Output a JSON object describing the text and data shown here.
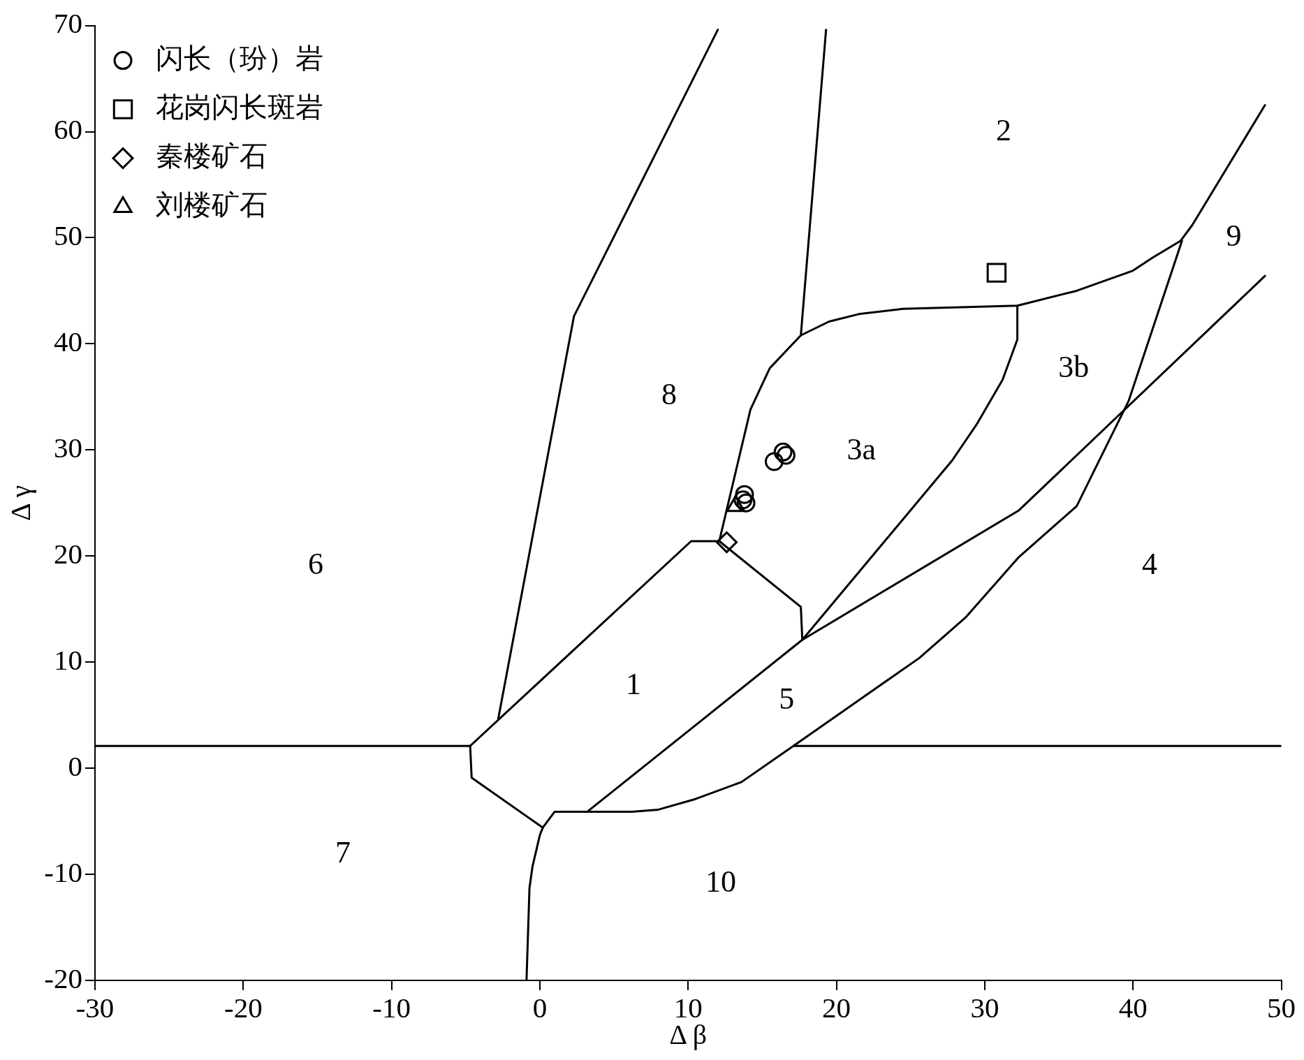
{
  "chart_data": {
    "type": "scatter",
    "xlabel": "Δ β",
    "ylabel": "Δ γ",
    "xlim": [
      -30,
      50
    ],
    "ylim": [
      -20,
      70
    ],
    "xticks": [
      -30,
      -20,
      -10,
      0,
      10,
      20,
      30,
      40,
      50
    ],
    "yticks": [
      -20,
      -10,
      0,
      10,
      20,
      30,
      40,
      50,
      60,
      70
    ],
    "legend": "top left",
    "annotations": [
      "1",
      "2",
      "3a",
      "3b",
      "4",
      "5",
      "6",
      "7",
      "8",
      "9",
      "10"
    ],
    "series": [
      {
        "type": "line",
        "color": "#000000",
        "x": [
          -30,
          -4.7
        ],
        "values": [
          2.1,
          2.1
        ]
      },
      {
        "type": "line",
        "color": "#000000",
        "x": [
          -4.7,
          -4.6,
          0.2,
          0.0,
          -0.5,
          -0.7,
          -0.9
        ],
        "values": [
          2.1,
          -0.9,
          -5.6,
          -6.3,
          -9.3,
          -11.3,
          -20
        ]
      },
      {
        "type": "line",
        "color": "#000000",
        "x": [
          0.2,
          1.0,
          3.2,
          6.2,
          8.0,
          10.5,
          13.6,
          17.1,
          25.6,
          28.7,
          32.3,
          36.2,
          38.0,
          39.7,
          43.3
        ],
        "values": [
          -5.6,
          -4.1,
          -4.1,
          -4.1,
          -3.9,
          -2.9,
          -1.3,
          2.1,
          10.4,
          14.2,
          19.9,
          24.7,
          29.8,
          34.6,
          49.7
        ]
      },
      {
        "type": "line",
        "color": "#000000",
        "x": [
          17.1,
          50
        ],
        "values": [
          2.1,
          2.1
        ]
      },
      {
        "type": "line",
        "color": "#000000",
        "x": [
          3.2,
          17.7,
          32.3,
          48.9
        ],
        "values": [
          -4.1,
          12.1,
          24.3,
          46.4
        ]
      },
      {
        "type": "line",
        "color": "#000000",
        "x": [
          -4.7,
          10.2,
          12.1,
          17.6,
          17.7
        ],
        "values": [
          2.1,
          21.4,
          21.4,
          15.2,
          12.1
        ]
      },
      {
        "type": "line",
        "color": "#000000",
        "x": [
          -2.8,
          2.3,
          12.0
        ],
        "values": [
          4.7,
          42.6,
          69.6
        ]
      },
      {
        "type": "line",
        "color": "#000000",
        "x": [
          17.6,
          19.3
        ],
        "values": [
          40.8,
          69.6
        ]
      },
      {
        "type": "line",
        "color": "#000000",
        "x": [
          12.1,
          14.2,
          15.5,
          17.6,
          19.5,
          21.5,
          24.5,
          32.2,
          36.2,
          40.0,
          41.3,
          43.2,
          44.0,
          48.9
        ],
        "values": [
          21.4,
          33.8,
          37.7,
          40.8,
          42.1,
          42.8,
          43.3,
          43.6,
          45.0,
          46.9,
          48.1,
          49.7,
          51.2,
          62.5
        ]
      },
      {
        "type": "line",
        "color": "#000000",
        "x": [
          32.2,
          32.2,
          31.2,
          29.5,
          27.8,
          17.7
        ],
        "values": [
          43.6,
          40.4,
          36.6,
          32.5,
          29.0,
          12.1
        ]
      },
      {
        "name": "闪长（玢）岩",
        "type": "scatter",
        "marker": "circle",
        "color": "#000000",
        "x": [
          16.4,
          16.6,
          15.8,
          13.8,
          13.7,
          13.9
        ],
        "values": [
          29.8,
          29.5,
          28.9,
          25.8,
          25.3,
          25.0
        ]
      },
      {
        "name": "花岗闪长斑岩",
        "type": "scatter",
        "marker": "square",
        "color": "#000000",
        "x": [
          30.8
        ],
        "values": [
          46.7
        ]
      },
      {
        "name": "秦楼矿石",
        "type": "scatter",
        "marker": "diamond",
        "color": "#000000",
        "x": [
          12.6
        ],
        "values": [
          21.3
        ]
      },
      {
        "name": "刘楼矿石",
        "type": "scatter",
        "marker": "triangle",
        "color": "#000000",
        "x": [
          13.2
        ],
        "values": [
          24.7
        ]
      }
    ]
  }
}
